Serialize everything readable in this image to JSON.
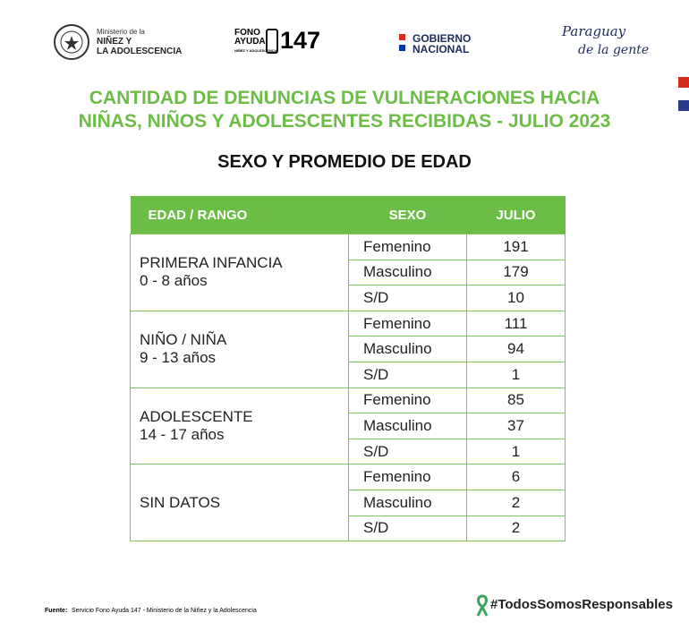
{
  "header": {
    "logos": {
      "ministry": {
        "small": "Ministerio de la",
        "name": "NIÑEZ Y\nLA ADOLESCENCIA"
      },
      "fono": {
        "line1": "FONO",
        "line2": "AYUDA",
        "number": "147",
        "small": "NIÑEZ Y ADOLESCENCIA"
      },
      "gobierno": {
        "line1": "GOBIERNO",
        "line2": "NACIONAL"
      },
      "paraguay": {
        "line1": "Paraguay",
        "line2": "de la gente"
      }
    }
  },
  "title": {
    "line1": "CANTIDAD DE DENUNCIAS DE VULNERACIONES HACIA",
    "line2": "NIÑAS, NIÑOS Y ADOLESCENTES RECIBIDAS - JULIO 2023"
  },
  "subtitle": "SEXO Y PROMEDIO DE EDAD",
  "table": {
    "columns": [
      "EDAD / RANGO",
      "SEXO",
      "JULIO"
    ],
    "groups": [
      {
        "label": "PRIMERA INFANCIA",
        "range": "0 - 8 años",
        "rows": [
          {
            "sexo": "Femenino",
            "julio": 191
          },
          {
            "sexo": "Masculino",
            "julio": 179
          },
          {
            "sexo": "S/D",
            "julio": 10
          }
        ]
      },
      {
        "label": "NIÑO / NIÑA",
        "range": "9 - 13 años",
        "rows": [
          {
            "sexo": "Femenino",
            "julio": 111
          },
          {
            "sexo": "Masculino",
            "julio": 94
          },
          {
            "sexo": "S/D",
            "julio": 1
          }
        ]
      },
      {
        "label": "ADOLESCENTE",
        "range": "14 - 17 años",
        "rows": [
          {
            "sexo": "Femenino",
            "julio": 85
          },
          {
            "sexo": "Masculino",
            "julio": 37
          },
          {
            "sexo": "S/D",
            "julio": 1
          }
        ]
      },
      {
        "label": "SIN DATOS",
        "rows": [
          {
            "sexo": "Femenino",
            "julio": 6
          },
          {
            "sexo": "Masculino",
            "julio": 2
          },
          {
            "sexo": "S/D",
            "julio": 2
          }
        ]
      }
    ]
  },
  "footer": {
    "source_label": "Fuente:",
    "source": "Servicio Fono Ayuda 147 - Ministerio de la Niñez y la Adolescencia",
    "hashtag": "#TodosSomosResponsables"
  }
}
